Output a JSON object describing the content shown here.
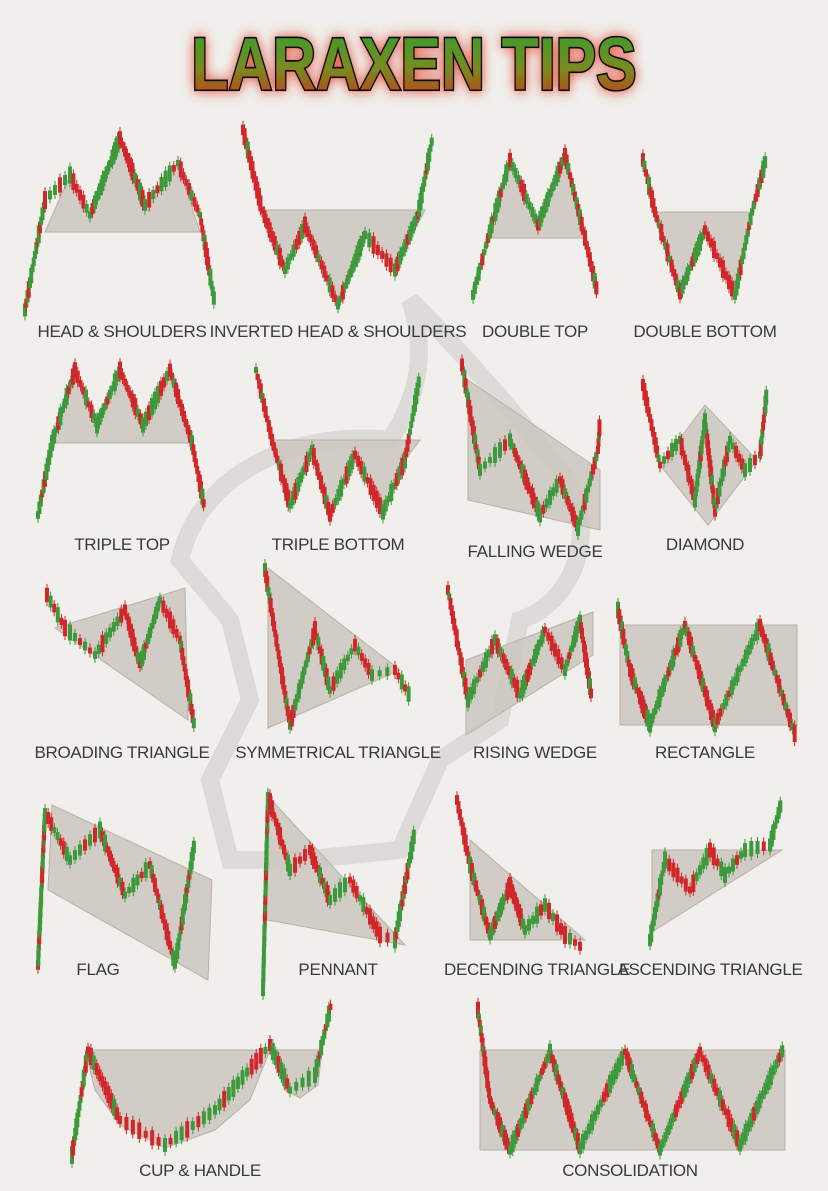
{
  "header": {
    "title": "LARAXEN TIPS"
  },
  "patterns": [
    {
      "label": "HEAD & SHOULDERS"
    },
    {
      "label": "INVERTED HEAD & SHOULDERS"
    },
    {
      "label": "DOUBLE TOP"
    },
    {
      "label": "DOUBLE BOTTOM"
    },
    {
      "label": "TRIPLE TOP"
    },
    {
      "label": "TRIPLE BOTTOM"
    },
    {
      "label": "FALLING WEDGE"
    },
    {
      "label": "DIAMOND"
    },
    {
      "label": "BROADING TRIANGLE"
    },
    {
      "label": "SYMMETRICAL TRIANGLE"
    },
    {
      "label": "RISING WEDGE"
    },
    {
      "label": "RECTANGLE"
    },
    {
      "label": "FLAG"
    },
    {
      "label": "PENNANT"
    },
    {
      "label": "DECENDING TRIANGLE"
    },
    {
      "label": "ASCENDING TRIANGLE"
    },
    {
      "label": "CUP & HANDLE"
    },
    {
      "label": "CONSOLIDATION"
    }
  ]
}
